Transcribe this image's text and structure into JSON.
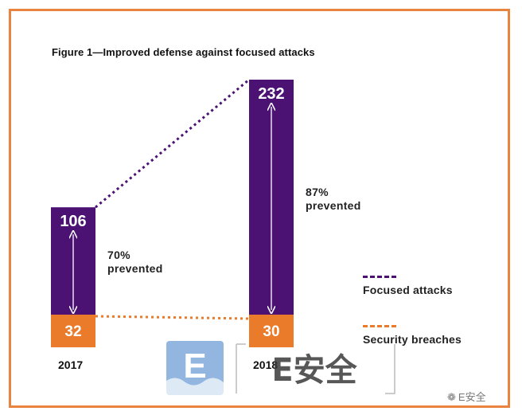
{
  "title": "Figure 1—Improved defense against focused attacks",
  "colors": {
    "frame": "#e8843f",
    "focused": "#4b1173",
    "breaches": "#ea7b2b"
  },
  "chart_data": {
    "type": "bar",
    "stacked": true,
    "categories": [
      "2017",
      "2018"
    ],
    "series": [
      {
        "name": "Focused attacks",
        "values": [
          106,
          232
        ],
        "value_labels": [
          "106",
          "232"
        ]
      },
      {
        "name": "Security breaches",
        "values": [
          32,
          30
        ],
        "value_labels": [
          "32",
          "30"
        ]
      }
    ],
    "annotations": [
      {
        "category": "2017",
        "line1": "70%",
        "line2": "prevented"
      },
      {
        "category": "2018",
        "line1": "87%",
        "line2": "prevented"
      }
    ],
    "legend_position": "right"
  },
  "watermark": {
    "logo_letter": "E",
    "logo_text": "E安全",
    "footer_text": "E安全",
    "footer_icon": "wechat-icon"
  }
}
